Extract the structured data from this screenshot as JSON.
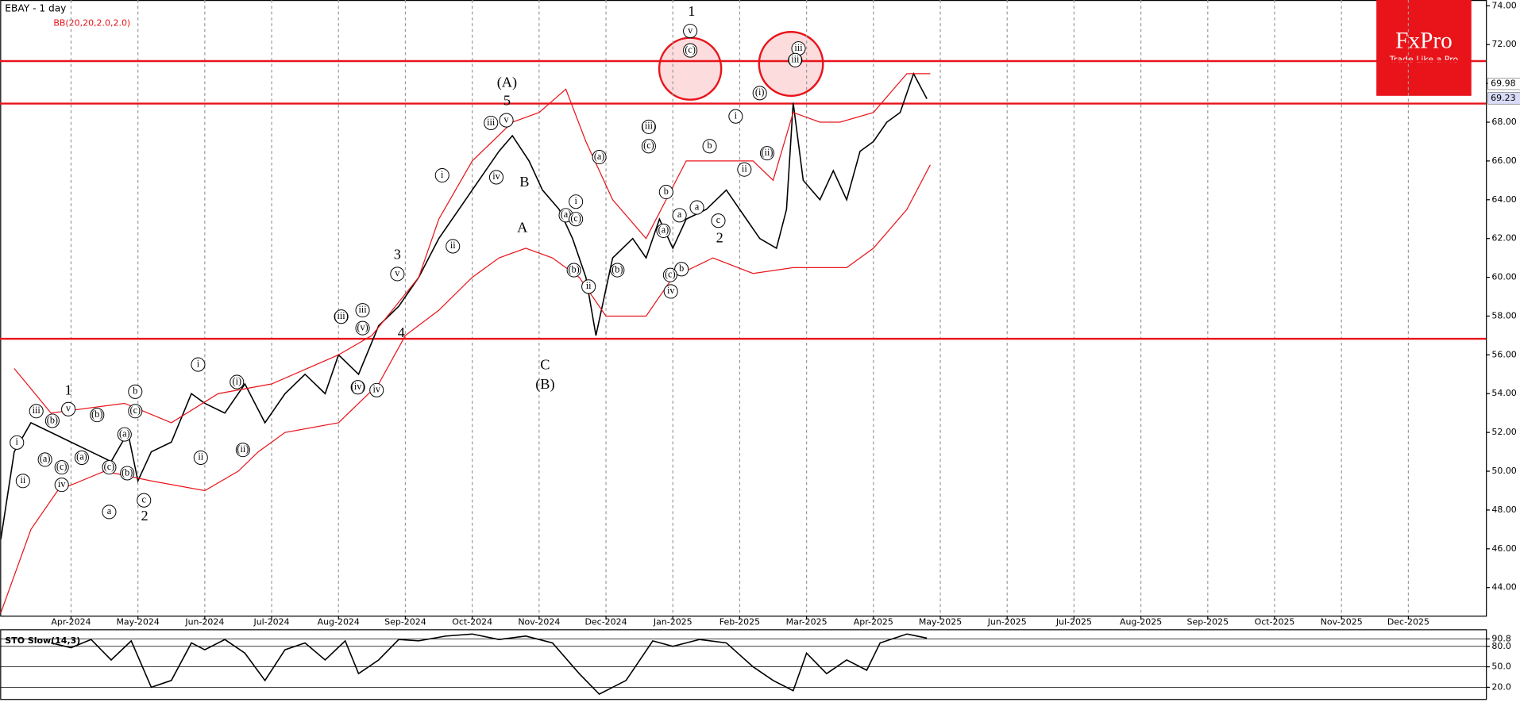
{
  "chart_data": [
    {
      "type": "line",
      "title": "EBAY - 1 day",
      "indicator": "BB(20,20,2.0,2.0)",
      "xlim": [
        -1.06,
        21.16
      ],
      "ylim": [
        42.55,
        74.3
      ],
      "grid": "x",
      "xticks": [
        {
          "value": 0,
          "label": "Apr-2024"
        },
        {
          "value": 1,
          "label": "May-2024"
        },
        {
          "value": 2,
          "label": "Jun-2024"
        },
        {
          "value": 3,
          "label": "Jul-2024"
        },
        {
          "value": 4,
          "label": "Aug-2024"
        },
        {
          "value": 5,
          "label": "Sep-2024"
        },
        {
          "value": 6,
          "label": "Oct-2024"
        },
        {
          "value": 7,
          "label": "Nov-2024"
        },
        {
          "value": 8,
          "label": "Dec-2024"
        },
        {
          "value": 9,
          "label": "Jan-2025"
        },
        {
          "value": 10,
          "label": "Feb-2025"
        },
        {
          "value": 11,
          "label": "Mar-2025"
        },
        {
          "value": 12,
          "label": "Apr-2025"
        },
        {
          "value": 13,
          "label": "May-2025"
        },
        {
          "value": 14,
          "label": "Jun-2025"
        },
        {
          "value": 15,
          "label": "Jul-2025"
        },
        {
          "value": 16,
          "label": "Aug-2025"
        },
        {
          "value": 17,
          "label": "Sep-2025"
        },
        {
          "value": 18,
          "label": "Oct-2025"
        },
        {
          "value": 19,
          "label": "Nov-2025"
        },
        {
          "value": 20,
          "label": "Dec-2025"
        }
      ],
      "yticks": [
        {
          "value": 44,
          "label": "44.00"
        },
        {
          "value": 46,
          "label": "46.00"
        },
        {
          "value": 48,
          "label": "48.00"
        },
        {
          "value": 50,
          "label": "50.00"
        },
        {
          "value": 52,
          "label": "52.00"
        },
        {
          "value": 54,
          "label": "54.00"
        },
        {
          "value": 56,
          "label": "56.00"
        },
        {
          "value": 58,
          "label": "58.00"
        },
        {
          "value": 60,
          "label": "60.00"
        },
        {
          "value": 62,
          "label": "62.00"
        },
        {
          "value": 64,
          "label": "64.00"
        },
        {
          "value": 66,
          "label": "66.00"
        },
        {
          "value": 68,
          "label": "68.00"
        },
        {
          "value": 70,
          "label": "70.00"
        },
        {
          "value": 72,
          "label": "72.00"
        },
        {
          "value": 74,
          "label": "74.00"
        }
      ],
      "levels": [
        71.15,
        68.96,
        56.83
      ],
      "level_color": "#e8141a",
      "price_tags": [
        69.98,
        69.23
      ],
      "series": [
        {
          "color": "#000000",
          "x": [
            -1.05,
            -0.85,
            -0.6,
            -0.3,
            0,
            0.3,
            0.6,
            0.85,
            1.0,
            1.2,
            1.5,
            1.8,
            2.0,
            2.3,
            2.6,
            2.9,
            3.2,
            3.5,
            3.8,
            4.0,
            4.3,
            4.6,
            4.9,
            5.2,
            5.5,
            5.8,
            6.1,
            6.4,
            6.6,
            6.85,
            7.05,
            7.3,
            7.5,
            7.7,
            7.85,
            8.1,
            8.4,
            8.6,
            8.8,
            9.0,
            9.2,
            9.5,
            9.8,
            10.1,
            10.3,
            10.55,
            10.7,
            10.8,
            10.95,
            11.2,
            11.4,
            11.6,
            11.8,
            12.0,
            12.2,
            12.4,
            12.6,
            12.8
          ],
          "values": [
            46.5,
            51,
            52.5,
            52,
            51.5,
            51,
            50.5,
            52,
            49.5,
            51,
            51.5,
            54,
            53.5,
            53,
            54.5,
            52.5,
            54,
            55,
            54,
            56,
            55,
            57.5,
            58.5,
            60,
            62,
            63.5,
            65,
            66.5,
            67.3,
            66,
            64.5,
            63.5,
            62,
            60,
            57,
            61,
            62,
            61,
            63,
            61.5,
            63,
            63.5,
            64.5,
            63,
            62,
            61.5,
            63.5,
            69,
            65,
            64,
            65.5,
            64,
            66.5,
            67,
            68,
            68.5,
            70.5,
            69.2
          ]
        },
        {
          "color": "#e8141a",
          "x": [
            -0.85,
            -0.3,
            0.8,
            1.5,
            2.2,
            3.0,
            4.0,
            4.5,
            5.2,
            5.5,
            6.0,
            6.6,
            7.0,
            7.4,
            7.7,
            8.1,
            8.6,
            9.2,
            9.6,
            10.2,
            10.5,
            10.8,
            11.2,
            11.5,
            12.0,
            12.5,
            12.85
          ],
          "values": [
            55.3,
            53,
            53.5,
            52.5,
            54,
            54.5,
            56,
            57,
            60,
            63,
            66,
            68,
            68.5,
            69.7,
            67,
            64,
            62,
            66,
            66,
            66,
            65,
            68.5,
            68,
            68,
            68.5,
            70.5,
            70.5
          ]
        },
        {
          "color": "#e8141a",
          "x": [
            -1.05,
            -0.6,
            -0.2,
            0.5,
            1.2,
            2.0,
            2.5,
            2.8,
            3.2,
            4.0,
            4.6,
            5.0,
            5.5,
            6.0,
            6.4,
            6.8,
            7.2,
            7.6,
            8.0,
            8.6,
            9.0,
            9.6,
            10.2,
            10.8,
            11.6,
            12.0,
            12.5,
            12.85
          ],
          "values": [
            42.7,
            47,
            49,
            50,
            49.5,
            49,
            50,
            51,
            52,
            52.5,
            54.5,
            57,
            58.3,
            60,
            61,
            61.5,
            61,
            60,
            58,
            58,
            60,
            61,
            60.2,
            60.5,
            60.5,
            61.5,
            63.5,
            65.8
          ]
        }
      ],
      "annotations": [
        {
          "text": "(A)",
          "x": 6.52,
          "y": 70.0
        },
        {
          "text": "5",
          "x": 6.52,
          "y": 69.06
        },
        {
          "text": "B",
          "x": 6.78,
          "y": 64.86
        },
        {
          "text": "A",
          "x": 6.75,
          "y": 62.5
        },
        {
          "text": "C",
          "x": 7.09,
          "y": 55.43
        },
        {
          "text": "(B)",
          "x": 7.09,
          "y": 54.43
        },
        {
          "text": "1",
          "x": 9.28,
          "y": 73.65
        },
        {
          "text": "2",
          "x": 9.7,
          "y": 61.97
        },
        {
          "text": "3",
          "x": 4.88,
          "y": 61.12
        },
        {
          "text": "4",
          "x": 4.94,
          "y": 57.08
        },
        {
          "text": "1",
          "x": -0.04,
          "y": 54.13
        },
        {
          "text": "2",
          "x": 1.1,
          "y": 47.64
        },
        {
          "text": "v",
          "x": 9.26,
          "y": 72.7,
          "circled": true
        },
        {
          "text": "(c)",
          "x": 9.26,
          "y": 71.7,
          "circled": true
        },
        {
          "text": "iii",
          "x": 10.88,
          "y": 71.8,
          "circled": true
        },
        {
          "text": "(iii)",
          "x": 10.83,
          "y": 71.2,
          "circled": true
        },
        {
          "text": "iii",
          "x": 6.28,
          "y": 67.96,
          "circled": true
        },
        {
          "text": "v",
          "x": 6.51,
          "y": 68.1,
          "circled": true
        },
        {
          "text": "iv",
          "x": 6.36,
          "y": 65.16,
          "circled": true
        },
        {
          "text": "i",
          "x": 5.55,
          "y": 65.26,
          "circled": true
        },
        {
          "text": "ii",
          "x": 5.71,
          "y": 61.6,
          "circled": true
        },
        {
          "text": "v",
          "x": 4.88,
          "y": 60.17,
          "circled": true
        },
        {
          "text": "(iii)",
          "x": 4.04,
          "y": 57.97,
          "circled": true
        },
        {
          "text": "iii",
          "x": 4.36,
          "y": 58.3,
          "circled": true
        },
        {
          "text": "(v)",
          "x": 4.36,
          "y": 57.38,
          "circled": true
        },
        {
          "text": "iv",
          "x": 4.57,
          "y": 54.18,
          "circled": true
        },
        {
          "text": "(iv)",
          "x": 4.29,
          "y": 54.33,
          "circled": true
        },
        {
          "text": "(iii)",
          "x": 8.64,
          "y": 67.76,
          "circled": true
        },
        {
          "text": "(c)",
          "x": 8.64,
          "y": 66.76,
          "circled": true
        },
        {
          "text": "(a)",
          "x": 7.9,
          "y": 66.2,
          "circled": true
        },
        {
          "text": "i",
          "x": 7.55,
          "y": 63.9,
          "circled": true
        },
        {
          "text": "(a)",
          "x": 7.4,
          "y": 63.2,
          "circled": true
        },
        {
          "text": "(c)",
          "x": 7.55,
          "y": 63.0,
          "circled": true
        },
        {
          "text": "(b)",
          "x": 7.52,
          "y": 60.37,
          "circled": true
        },
        {
          "text": "ii",
          "x": 7.74,
          "y": 59.52,
          "circled": true
        },
        {
          "text": "(b)",
          "x": 8.17,
          "y": 60.37,
          "circled": true
        },
        {
          "text": "b",
          "x": 8.9,
          "y": 64.4,
          "circled": true
        },
        {
          "text": "a",
          "x": 9.1,
          "y": 63.2,
          "circled": true
        },
        {
          "text": "(a)",
          "x": 8.86,
          "y": 62.4,
          "circled": true
        },
        {
          "text": "b",
          "x": 9.13,
          "y": 60.42,
          "circled": true
        },
        {
          "text": "(c)",
          "x": 8.96,
          "y": 60.12,
          "circled": true
        },
        {
          "text": "iv",
          "x": 8.97,
          "y": 59.27,
          "circled": true
        },
        {
          "text": "a",
          "x": 9.36,
          "y": 63.6,
          "circled": true
        },
        {
          "text": "b",
          "x": 9.55,
          "y": 66.76,
          "circled": true
        },
        {
          "text": "c",
          "x": 9.68,
          "y": 62.92,
          "circled": true
        },
        {
          "text": "i",
          "x": 9.94,
          "y": 68.3,
          "circled": true
        },
        {
          "text": "(i)",
          "x": 10.3,
          "y": 69.5,
          "circled": true
        },
        {
          "text": "ii",
          "x": 10.07,
          "y": 65.56,
          "circled": true
        },
        {
          "text": "(ii)",
          "x": 10.41,
          "y": 66.4,
          "circled": true
        },
        {
          "text": "i",
          "x": -0.81,
          "y": 51.48,
          "circled": true
        },
        {
          "text": "ii",
          "x": -0.72,
          "y": 49.5,
          "circled": true
        },
        {
          "text": "iii",
          "x": -0.52,
          "y": 53.1,
          "circled": true
        },
        {
          "text": "(a)",
          "x": -0.39,
          "y": 50.6,
          "circled": true
        },
        {
          "text": "(b)",
          "x": -0.28,
          "y": 52.6,
          "circled": true
        },
        {
          "text": "(c)",
          "x": -0.14,
          "y": 50.2,
          "circled": true
        },
        {
          "text": "iv",
          "x": -0.14,
          "y": 49.3,
          "circled": true
        },
        {
          "text": "v",
          "x": -0.04,
          "y": 53.2,
          "circled": true
        },
        {
          "text": "(a)",
          "x": 0.16,
          "y": 50.7,
          "circled": true
        },
        {
          "text": "(b)",
          "x": 0.39,
          "y": 52.9,
          "circled": true
        },
        {
          "text": "(c)",
          "x": 0.57,
          "y": 50.2,
          "circled": true
        },
        {
          "text": "a",
          "x": 0.57,
          "y": 47.9,
          "circled": true
        },
        {
          "text": "(a)",
          "x": 0.8,
          "y": 51.9,
          "circled": true
        },
        {
          "text": "(b)",
          "x": 0.84,
          "y": 49.9,
          "circled": true
        },
        {
          "text": "b",
          "x": 0.96,
          "y": 54.1,
          "circled": true
        },
        {
          "text": "(c)",
          "x": 0.96,
          "y": 53.1,
          "circled": true
        },
        {
          "text": "c",
          "x": 1.09,
          "y": 48.5,
          "circled": true
        },
        {
          "text": "i",
          "x": 1.9,
          "y": 55.5,
          "circled": true
        },
        {
          "text": "ii",
          "x": 1.94,
          "y": 50.7,
          "circled": true
        },
        {
          "text": "(i)",
          "x": 2.48,
          "y": 54.6,
          "circled": true
        },
        {
          "text": "(ii)",
          "x": 2.57,
          "y": 51.1,
          "circled": true
        }
      ]
    },
    {
      "type": "line",
      "title": "STO Slow(14,3)",
      "xlim": [
        -1.06,
        21.16
      ],
      "ylim": [
        2.9,
        105
      ],
      "yticks": [
        90.8,
        {
          "value": 80,
          "label": "80.0"
        },
        {
          "value": 50,
          "label": "50.0"
        },
        {
          "value": 20,
          "label": "20.0"
        }
      ],
      "series": [
        {
          "color": "#000000",
          "x": [
            -0.3,
            0,
            0.3,
            0.6,
            0.9,
            1.2,
            1.5,
            1.8,
            2.0,
            2.3,
            2.6,
            2.9,
            3.2,
            3.5,
            3.8,
            4.1,
            4.3,
            4.6,
            4.9,
            5.2,
            5.6,
            6.0,
            6.4,
            6.8,
            7.2,
            7.6,
            7.9,
            8.3,
            8.7,
            9.0,
            9.4,
            9.8,
            10.2,
            10.5,
            10.8,
            11.0,
            11.3,
            11.6,
            11.9,
            12.1,
            12.5,
            12.8
          ],
          "values": [
            85,
            78,
            90,
            60,
            88,
            20,
            30,
            85,
            75,
            90,
            70,
            30,
            75,
            85,
            60,
            88,
            40,
            60,
            90,
            88,
            95,
            98,
            90,
            95,
            85,
            40,
            10,
            30,
            88,
            80,
            90,
            85,
            50,
            30,
            15,
            70,
            40,
            60,
            45,
            85,
            98,
            92
          ]
        }
      ]
    }
  ],
  "logo": {
    "name": "FxPro",
    "tagline": "Trade Like a Pro"
  }
}
